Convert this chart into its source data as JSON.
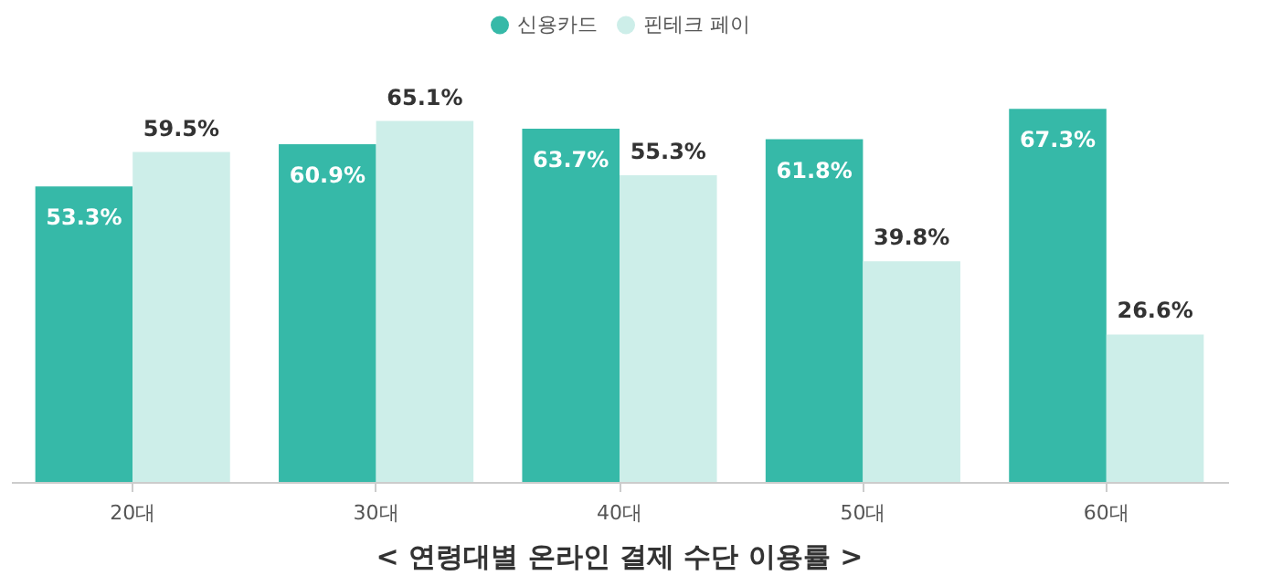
{
  "chart_data": {
    "type": "bar",
    "title": "< 연령대별 온라인 결제 수단 이용률 >",
    "categories": [
      "20대",
      "30대",
      "40대",
      "50대",
      "60대"
    ],
    "series": [
      {
        "name": "신용카드",
        "color": "#36b9a8",
        "values": [
          53.3,
          60.9,
          63.7,
          61.8,
          67.3
        ],
        "value_labels": [
          "53.3%",
          "60.9%",
          "63.7%",
          "61.8%",
          "67.3%"
        ]
      },
      {
        "name": "핀테크 페이",
        "color": "#cdeee9",
        "values": [
          59.5,
          65.1,
          55.3,
          39.8,
          26.6
        ],
        "value_labels": [
          "59.5%",
          "65.1%",
          "55.3%",
          "39.8%",
          "26.6%"
        ]
      }
    ],
    "legend": "top",
    "grid": false
  }
}
